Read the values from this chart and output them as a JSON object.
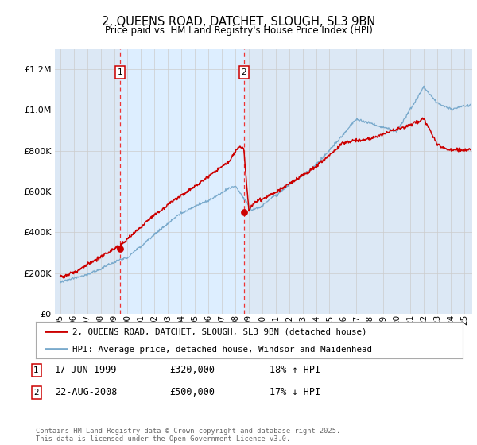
{
  "title": "2, QUEENS ROAD, DATCHET, SLOUGH, SL3 9BN",
  "subtitle": "Price paid vs. HM Land Registry's House Price Index (HPI)",
  "red_label": "2, QUEENS ROAD, DATCHET, SLOUGH, SL3 9BN (detached house)",
  "blue_label": "HPI: Average price, detached house, Windsor and Maidenhead",
  "ann1_date": "17-JUN-1999",
  "ann1_price": "£320,000",
  "ann1_pct": "18% ↑ HPI",
  "ann2_date": "22-AUG-2008",
  "ann2_price": "£500,000",
  "ann2_pct": "17% ↓ HPI",
  "footer": "Contains HM Land Registry data © Crown copyright and database right 2025.\nThis data is licensed under the Open Government Licence v3.0.",
  "ylim": [
    0,
    1300000
  ],
  "yticks": [
    0,
    200000,
    400000,
    600000,
    800000,
    1000000,
    1200000
  ],
  "xlim_start": 1994.6,
  "xlim_end": 2025.6,
  "shade_start": 1999.46,
  "shade_end": 2008.64,
  "t1": 1999.46,
  "t2": 2008.64,
  "p1": 320000,
  "p2": 500000,
  "background_color": "#dce8f5",
  "plot_bg": "#ffffff",
  "red_color": "#cc0000",
  "blue_color": "#7aaacc",
  "vline_color": "#ee3333",
  "grid_color": "#cccccc",
  "shade_color": "#ddeeff"
}
